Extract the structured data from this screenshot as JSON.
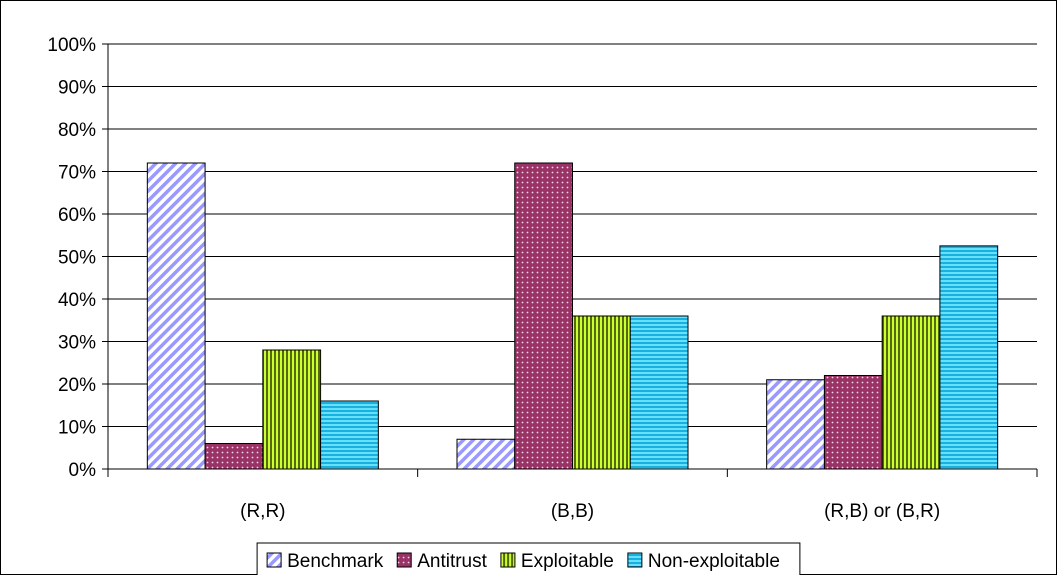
{
  "chart_data": {
    "type": "bar",
    "title": "",
    "xlabel": "",
    "ylabel": "",
    "ylim": [
      0,
      100
    ],
    "y_ticks": [
      "0%",
      "10%",
      "20%",
      "30%",
      "40%",
      "50%",
      "60%",
      "70%",
      "80%",
      "90%",
      "100%"
    ],
    "grid": true,
    "legend_position": "bottom",
    "categories": [
      "(R,R)",
      "(B,B)",
      "(R,B) or (B,R)"
    ],
    "series": [
      {
        "name": "Benchmark",
        "values": [
          72,
          7,
          21
        ],
        "color": "#9999ff",
        "pattern": "diagonal-stripes"
      },
      {
        "name": "Antitrust",
        "values": [
          6,
          72,
          22
        ],
        "color": "#993366",
        "pattern": "dots"
      },
      {
        "name": "Exploitable",
        "values": [
          28,
          36,
          36
        ],
        "color": "#ccff33",
        "pattern": "vertical-stripes"
      },
      {
        "name": "Non-exploitable",
        "values": [
          16,
          36,
          52.5
        ],
        "color": "#33ccff",
        "pattern": "horizontal-stripes"
      }
    ]
  }
}
